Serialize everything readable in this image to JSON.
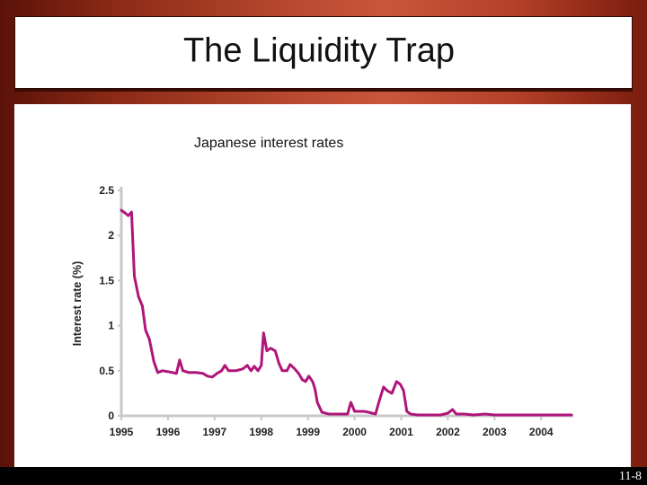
{
  "slide": {
    "title": "The Liquidity Trap",
    "number": "11-8"
  },
  "chart_data": {
    "type": "line",
    "title": "Japanese interest rates",
    "xlabel": "",
    "ylabel": "Interest rate (%)",
    "ylim": [
      0,
      2.5
    ],
    "xlim": [
      1995.0,
      2004.65
    ],
    "yticks": [
      "0",
      "0.5",
      "1",
      "1.5",
      "2",
      "2.5"
    ],
    "xticks": [
      "1995",
      "1996",
      "1997",
      "1998",
      "1999",
      "2000",
      "2001",
      "2002",
      "2003",
      "2004"
    ],
    "line_color": "#b0157a",
    "grid": false,
    "series": [
      {
        "points": [
          [
            1995.0,
            2.28
          ],
          [
            1995.08,
            2.25
          ],
          [
            1995.15,
            2.22
          ],
          [
            1995.22,
            2.26
          ],
          [
            1995.28,
            1.55
          ],
          [
            1995.37,
            1.32
          ],
          [
            1995.45,
            1.22
          ],
          [
            1995.52,
            0.95
          ],
          [
            1995.6,
            0.85
          ],
          [
            1995.7,
            0.6
          ],
          [
            1995.78,
            0.48
          ],
          [
            1995.88,
            0.5
          ],
          [
            1996.0,
            0.49
          ],
          [
            1996.1,
            0.48
          ],
          [
            1996.18,
            0.47
          ],
          [
            1996.25,
            0.62
          ],
          [
            1996.32,
            0.5
          ],
          [
            1996.45,
            0.48
          ],
          [
            1996.6,
            0.48
          ],
          [
            1996.75,
            0.47
          ],
          [
            1996.85,
            0.44
          ],
          [
            1996.95,
            0.43
          ],
          [
            1997.05,
            0.47
          ],
          [
            1997.15,
            0.5
          ],
          [
            1997.22,
            0.56
          ],
          [
            1997.3,
            0.5
          ],
          [
            1997.45,
            0.5
          ],
          [
            1997.6,
            0.52
          ],
          [
            1997.7,
            0.56
          ],
          [
            1997.78,
            0.5
          ],
          [
            1997.85,
            0.55
          ],
          [
            1997.93,
            0.5
          ],
          [
            1998.0,
            0.56
          ],
          [
            1998.05,
            0.92
          ],
          [
            1998.12,
            0.72
          ],
          [
            1998.2,
            0.75
          ],
          [
            1998.3,
            0.72
          ],
          [
            1998.38,
            0.58
          ],
          [
            1998.45,
            0.5
          ],
          [
            1998.55,
            0.5
          ],
          [
            1998.62,
            0.57
          ],
          [
            1998.72,
            0.52
          ],
          [
            1998.8,
            0.47
          ],
          [
            1998.88,
            0.4
          ],
          [
            1998.95,
            0.38
          ],
          [
            1999.02,
            0.44
          ],
          [
            1999.1,
            0.38
          ],
          [
            1999.15,
            0.3
          ],
          [
            1999.2,
            0.15
          ],
          [
            1999.3,
            0.04
          ],
          [
            1999.45,
            0.02
          ],
          [
            1999.6,
            0.02
          ],
          [
            1999.75,
            0.02
          ],
          [
            1999.85,
            0.02
          ],
          [
            1999.92,
            0.15
          ],
          [
            2000.0,
            0.05
          ],
          [
            2000.1,
            0.05
          ],
          [
            2000.2,
            0.05
          ],
          [
            2000.3,
            0.04
          ],
          [
            2000.45,
            0.02
          ],
          [
            2000.52,
            0.15
          ],
          [
            2000.62,
            0.32
          ],
          [
            2000.7,
            0.28
          ],
          [
            2000.8,
            0.25
          ],
          [
            2000.9,
            0.38
          ],
          [
            2000.98,
            0.35
          ],
          [
            2001.05,
            0.28
          ],
          [
            2001.12,
            0.05
          ],
          [
            2001.2,
            0.02
          ],
          [
            2001.35,
            0.01
          ],
          [
            2001.55,
            0.01
          ],
          [
            2001.7,
            0.01
          ],
          [
            2001.85,
            0.01
          ],
          [
            2002.0,
            0.03
          ],
          [
            2002.1,
            0.07
          ],
          [
            2002.18,
            0.02
          ],
          [
            2002.35,
            0.02
          ],
          [
            2002.55,
            0.01
          ],
          [
            2002.8,
            0.02
          ],
          [
            2003.0,
            0.01
          ],
          [
            2003.2,
            0.01
          ],
          [
            2003.5,
            0.01
          ],
          [
            2003.8,
            0.01
          ],
          [
            2004.0,
            0.01
          ],
          [
            2004.3,
            0.01
          ],
          [
            2004.65,
            0.01
          ]
        ]
      }
    ]
  }
}
